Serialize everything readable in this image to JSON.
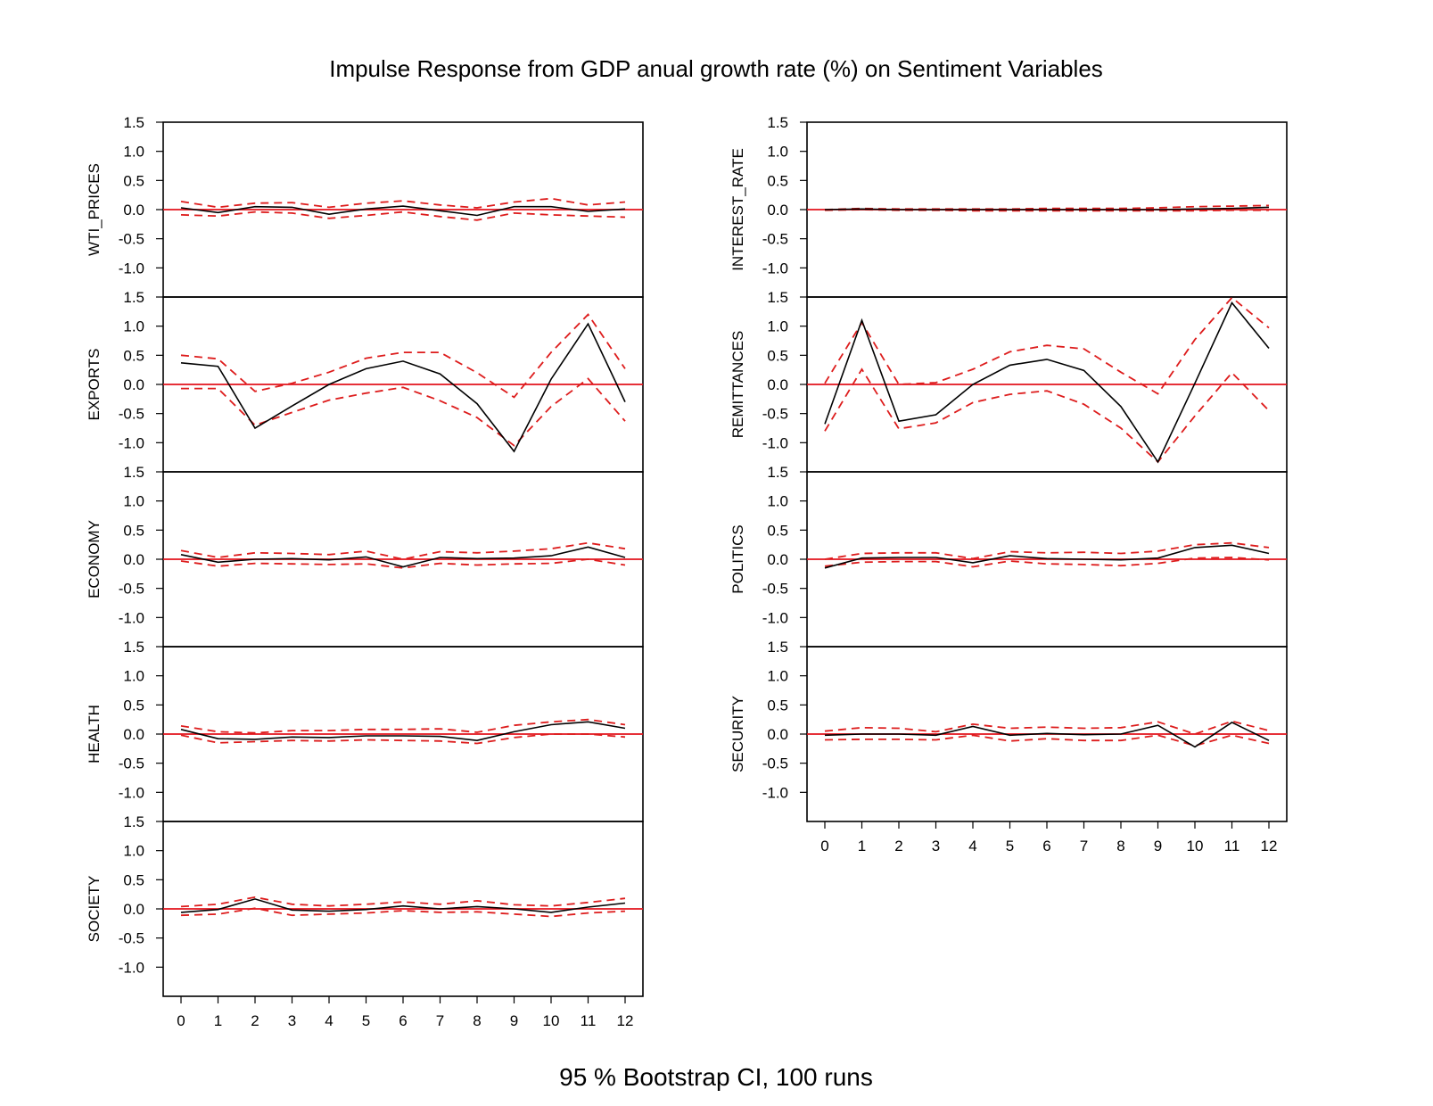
{
  "title": "Impulse Response from GDP anual growth rate (%) on Sentiment Variables",
  "footer": "95 % Bootstrap CI,  100 runs",
  "colors": {
    "irf_line": "#000000",
    "ci_line": "#dd1c1c",
    "zero_line": "#e3121b"
  },
  "chart_data": {
    "type": "line",
    "x": [
      0,
      1,
      2,
      3,
      4,
      5,
      6,
      7,
      8,
      9,
      10,
      11,
      12
    ],
    "x_tick_labels": [
      "0",
      "1",
      "2",
      "3",
      "4",
      "5",
      "6",
      "7",
      "8",
      "9",
      "10",
      "11",
      "12"
    ],
    "ylim": [
      -1.5,
      1.5
    ],
    "y_tick_labels": [
      "-1.0",
      "-0.5",
      "0.0",
      "0.5",
      "1.0",
      "1.5"
    ],
    "y_ticks": [
      -1.0,
      -0.5,
      0.0,
      0.5,
      1.0,
      1.5
    ],
    "panels": [
      {
        "column": "left",
        "ylabel": "WTI_PRICES",
        "irf": [
          0.03,
          -0.05,
          0.05,
          0.04,
          -0.08,
          0.01,
          0.06,
          -0.02,
          -0.1,
          0.05,
          0.05,
          -0.03,
          0.01
        ],
        "upper": [
          0.14,
          0.04,
          0.11,
          0.12,
          0.04,
          0.11,
          0.15,
          0.08,
          0.03,
          0.13,
          0.19,
          0.08,
          0.13
        ],
        "lower": [
          -0.09,
          -0.11,
          -0.04,
          -0.06,
          -0.15,
          -0.1,
          -0.04,
          -0.12,
          -0.18,
          -0.06,
          -0.09,
          -0.11,
          -0.13
        ]
      },
      {
        "column": "left",
        "ylabel": "EXPORTS",
        "irf": [
          0.37,
          0.31,
          -0.75,
          -0.37,
          0.0,
          0.27,
          0.4,
          0.18,
          -0.33,
          -1.15,
          0.09,
          1.04,
          -0.3
        ],
        "upper": [
          0.5,
          0.44,
          -0.12,
          0.02,
          0.21,
          0.45,
          0.55,
          0.55,
          0.2,
          -0.22,
          0.55,
          1.2,
          0.27
        ],
        "lower": [
          -0.07,
          -0.07,
          -0.7,
          -0.48,
          -0.27,
          -0.15,
          -0.05,
          -0.28,
          -0.57,
          -1.05,
          -0.38,
          0.1,
          -0.63
        ]
      },
      {
        "column": "left",
        "ylabel": "ECONOMY",
        "irf": [
          0.08,
          -0.05,
          0.0,
          0.01,
          -0.01,
          0.04,
          -0.13,
          0.03,
          0.01,
          0.02,
          0.06,
          0.21,
          0.03
        ],
        "upper": [
          0.15,
          0.03,
          0.11,
          0.1,
          0.08,
          0.14,
          0.0,
          0.13,
          0.11,
          0.14,
          0.18,
          0.28,
          0.18
        ],
        "lower": [
          -0.03,
          -0.12,
          -0.07,
          -0.08,
          -0.09,
          -0.08,
          -0.15,
          -0.07,
          -0.1,
          -0.08,
          -0.07,
          0.0,
          -0.1
        ]
      },
      {
        "column": "left",
        "ylabel": "HEALTH",
        "irf": [
          0.08,
          -0.08,
          -0.09,
          -0.05,
          -0.06,
          -0.03,
          -0.03,
          -0.04,
          -0.11,
          0.04,
          0.16,
          0.21,
          0.1
        ],
        "upper": [
          0.14,
          0.04,
          0.02,
          0.06,
          0.06,
          0.08,
          0.08,
          0.09,
          0.03,
          0.15,
          0.21,
          0.25,
          0.16
        ],
        "lower": [
          -0.02,
          -0.15,
          -0.13,
          -0.11,
          -0.12,
          -0.1,
          -0.11,
          -0.12,
          -0.16,
          -0.06,
          0.0,
          0.0,
          -0.05
        ]
      },
      {
        "column": "left",
        "ylabel": "SOCIETY",
        "irf": [
          -0.06,
          -0.01,
          0.17,
          -0.02,
          -0.04,
          -0.01,
          0.05,
          0.0,
          0.04,
          0.0,
          -0.06,
          0.03,
          0.1
        ],
        "upper": [
          0.04,
          0.08,
          0.2,
          0.08,
          0.05,
          0.08,
          0.12,
          0.08,
          0.14,
          0.07,
          0.05,
          0.11,
          0.18
        ],
        "lower": [
          -0.11,
          -0.09,
          0.01,
          -0.11,
          -0.09,
          -0.07,
          -0.03,
          -0.06,
          -0.05,
          -0.09,
          -0.13,
          -0.07,
          -0.04
        ]
      },
      {
        "column": "right",
        "ylabel": "INTEREST_RATE",
        "irf": [
          0.0,
          0.01,
          0.0,
          0.0,
          0.0,
          0.0,
          0.0,
          0.0,
          0.0,
          0.0,
          0.01,
          0.02,
          0.04
        ],
        "upper": [
          0.0,
          0.02,
          0.01,
          0.01,
          0.01,
          0.01,
          0.02,
          0.02,
          0.02,
          0.03,
          0.05,
          0.06,
          0.07
        ],
        "lower": [
          -0.01,
          0.0,
          -0.01,
          -0.01,
          -0.02,
          -0.02,
          -0.02,
          -0.02,
          -0.02,
          -0.02,
          -0.02,
          -0.01,
          -0.01
        ]
      },
      {
        "column": "right",
        "ylabel": "REMITTANCES",
        "irf": [
          -0.68,
          1.1,
          -0.63,
          -0.52,
          0.0,
          0.33,
          0.43,
          0.24,
          -0.38,
          -1.33,
          0.02,
          1.4,
          0.62
        ],
        "upper": [
          0.02,
          1.06,
          0.0,
          0.03,
          0.26,
          0.56,
          0.67,
          0.61,
          0.21,
          -0.16,
          0.77,
          1.49,
          0.97
        ],
        "lower": [
          -0.8,
          0.26,
          -0.76,
          -0.66,
          -0.31,
          -0.17,
          -0.11,
          -0.34,
          -0.75,
          -1.33,
          -0.54,
          0.2,
          -0.45
        ]
      },
      {
        "column": "right",
        "ylabel": "POLITICS",
        "irf": [
          -0.15,
          0.02,
          0.03,
          0.03,
          -0.06,
          0.06,
          0.01,
          0.0,
          -0.01,
          0.02,
          0.2,
          0.24,
          0.1
        ],
        "upper": [
          0.0,
          0.1,
          0.11,
          0.11,
          0.01,
          0.13,
          0.11,
          0.12,
          0.1,
          0.14,
          0.25,
          0.28,
          0.2
        ],
        "lower": [
          -0.12,
          -0.05,
          -0.04,
          -0.04,
          -0.13,
          -0.03,
          -0.08,
          -0.09,
          -0.11,
          -0.07,
          0.02,
          0.03,
          -0.01
        ]
      },
      {
        "column": "right",
        "ylabel": "SECURITY",
        "irf": [
          -0.02,
          0.0,
          0.0,
          -0.02,
          0.13,
          -0.02,
          0.01,
          -0.01,
          0.0,
          0.15,
          -0.22,
          0.2,
          -0.11
        ],
        "upper": [
          0.05,
          0.11,
          0.1,
          0.04,
          0.17,
          0.1,
          0.12,
          0.1,
          0.11,
          0.21,
          0.0,
          0.22,
          0.06
        ],
        "lower": [
          -0.1,
          -0.09,
          -0.09,
          -0.1,
          -0.02,
          -0.12,
          -0.08,
          -0.11,
          -0.11,
          -0.02,
          -0.2,
          -0.02,
          -0.16
        ]
      }
    ]
  }
}
